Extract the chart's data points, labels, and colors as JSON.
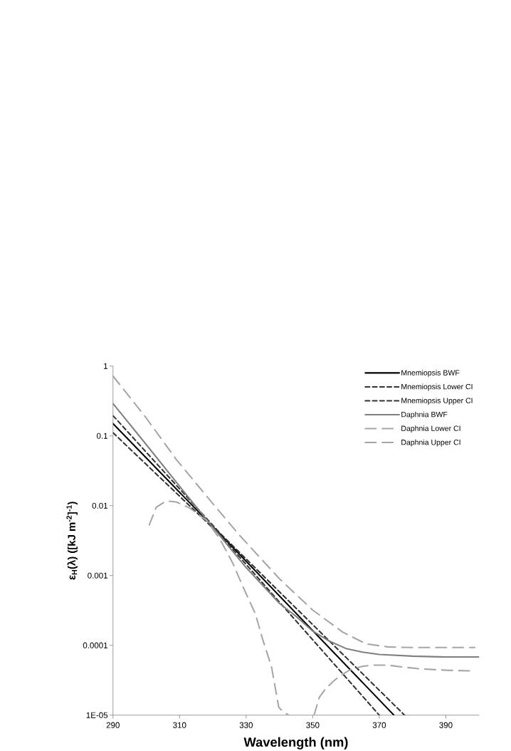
{
  "chart_data": {
    "type": "line",
    "xlabel": "Wavelength (nm)",
    "ylabel": "ε$_{H}$(λ) ([kJ m$^{-2}$]$^{-1}$)",
    "xlim": [
      290,
      400
    ],
    "ylim": [
      1e-05,
      1
    ],
    "xticks": [
      290,
      310,
      330,
      350,
      370,
      390
    ],
    "yticks": [
      {
        "value": 1e-05,
        "label": "1E-05"
      },
      0.0001,
      0.001,
      0.01,
      0.1,
      1
    ],
    "log": "y",
    "grid": false,
    "legend": "top right",
    "marker": "none",
    "series": [
      {
        "name": "Mnemiopsis BWF",
        "color": "#000000",
        "line_style": "solid",
        "x": [
          290,
          322,
          374.4
        ],
        "values": [
          0.15,
          0.004,
          1e-05
        ]
      },
      {
        "name": "Mnemiopsis Lower CI",
        "color": "#333333",
        "line_style": "dashed",
        "x": [
          290,
          322,
          370
        ],
        "values": [
          0.111,
          0.0039,
          1e-05
        ]
      },
      {
        "name": "Mnemiopsis Upper CI",
        "color": "#333333",
        "line_style": "dashed",
        "x": [
          290,
          322,
          377.6
        ],
        "values": [
          0.195,
          0.0041,
          1e-05
        ]
      },
      {
        "name": "Daphnia BWF",
        "color": "#808080",
        "line_style": "solid",
        "x": [
          290,
          300,
          310,
          320,
          330,
          340,
          345,
          350,
          355,
          360,
          365,
          370,
          380,
          390,
          400
        ],
        "values": [
          0.29,
          0.075,
          0.019,
          0.0049,
          0.0013,
          0.0004,
          0.00026,
          0.00016,
          0.000115,
          9e-05,
          8e-05,
          7.4e-05,
          7e-05,
          6.8e-05,
          6.8e-05
        ]
      },
      {
        "name": "Daphnia Lower CI",
        "color": "#a6a6a6",
        "line_style": "dashed",
        "x": [
          300.9,
          303,
          306,
          309,
          313,
          318,
          322,
          326,
          329,
          332.8,
          335,
          337.6,
          339.8,
          340.5,
          342.7,
          346,
          350.4,
          352,
          353.9,
          356,
          358,
          361,
          364.8,
          368,
          372.5,
          377,
          382.3,
          390,
          398
        ],
        "values": [
          0.0053,
          0.0095,
          0.0117,
          0.0113,
          0.0093,
          0.0062,
          0.0034,
          0.0015,
          0.0007,
          0.00028,
          0.00012,
          5e-05,
          1.3e-05,
          1.2e-05,
          1e-05,
          null,
          1e-05,
          1.8e-05,
          2.4e-05,
          3e-05,
          3.6e-05,
          4.4e-05,
          5e-05,
          5.2e-05,
          5.2e-05,
          4.9e-05,
          4.6e-05,
          4.4e-05,
          4.3e-05
        ]
      },
      {
        "name": "Daphnia Upper CI",
        "color": "#a6a6a6",
        "line_style": "dashed",
        "x": [
          290,
          300,
          309,
          320,
          328.4,
          340,
          350,
          359,
          366,
          372.5,
          380,
          390,
          398.7
        ],
        "values": [
          0.72,
          0.18,
          0.046,
          0.0107,
          0.0036,
          0.0009,
          0.00032,
          0.000155,
          0.000105,
          9.5e-05,
          9.3e-05,
          9.3e-05,
          9.3e-05
        ]
      }
    ]
  }
}
